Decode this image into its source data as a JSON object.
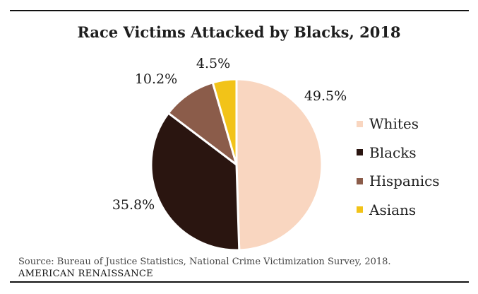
{
  "chart_data": {
    "type": "pie",
    "title": "Race Victims Attacked by Blacks, 2018",
    "categories": [
      "Whites",
      "Blacks",
      "Hispanics",
      "Asians"
    ],
    "values": [
      49.5,
      35.8,
      10.2,
      4.5
    ],
    "value_labels": [
      "49.5%",
      "35.8%",
      "10.2%",
      "4.5%"
    ],
    "colors": [
      "#f9d6c0",
      "#2a1510",
      "#8b5c4a",
      "#f2c318"
    ],
    "legend_position": "right",
    "start_angle": "12 o'clock, clockwise"
  },
  "footer": {
    "source": "Source: Bureau of Justice Statistics, National Crime Victimization Survey, 2018.",
    "publisher": "AMERICAN RENAISSANCE"
  }
}
